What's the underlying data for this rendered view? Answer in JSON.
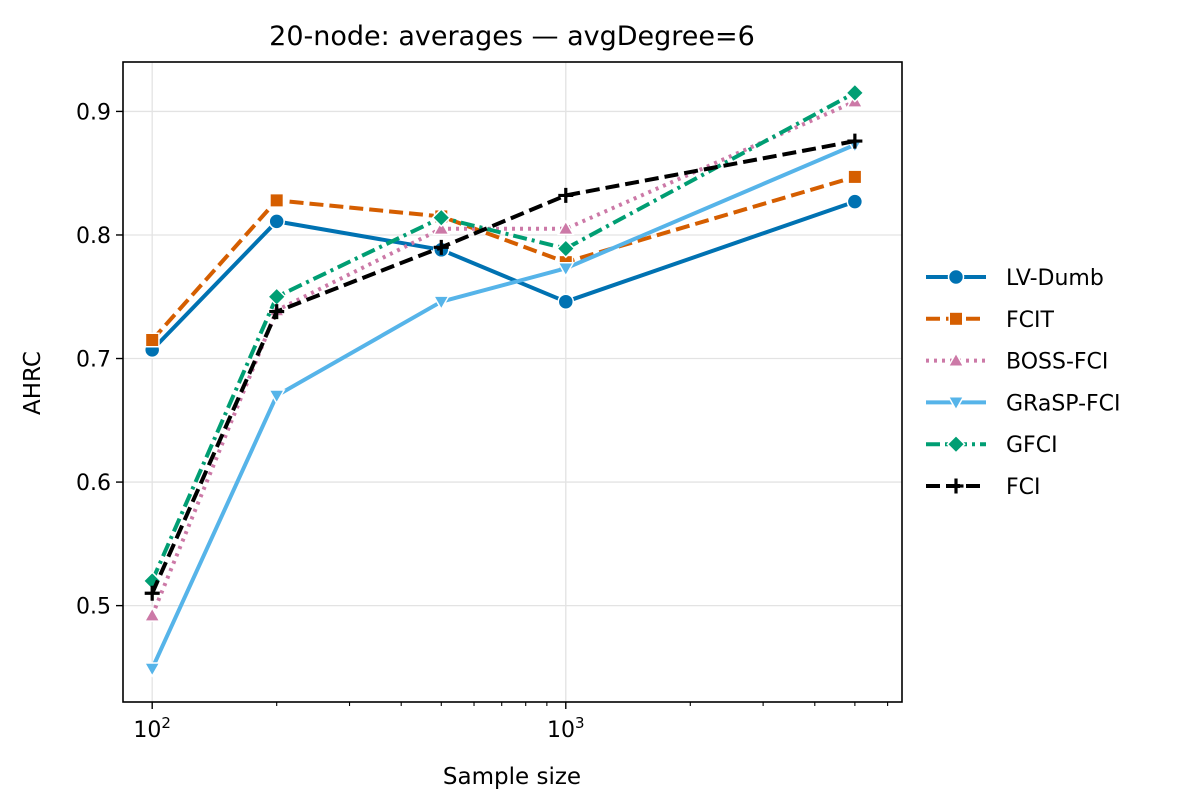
{
  "chart_data": {
    "type": "line",
    "title": "20-node: averages — avgDegree=6",
    "xlabel": "Sample size",
    "ylabel": "AHRC",
    "xscale": "log",
    "xlim": [
      85,
      6500
    ],
    "ylim": [
      0.422,
      0.94
    ],
    "xticks_major": [
      {
        "value": 100,
        "base": "10",
        "exp": "2"
      },
      {
        "value": 1000,
        "base": "10",
        "exp": "3"
      }
    ],
    "xticks_minor": [
      200,
      300,
      400,
      500,
      600,
      700,
      800,
      900,
      2000,
      3000,
      4000,
      5000,
      6000
    ],
    "yticks": [
      {
        "value": 0.5,
        "label": "0.5"
      },
      {
        "value": 0.6,
        "label": "0.6"
      },
      {
        "value": 0.7,
        "label": "0.7"
      },
      {
        "value": 0.8,
        "label": "0.8"
      },
      {
        "value": 0.9,
        "label": "0.9"
      }
    ],
    "grid": true,
    "legend_position": "right-outside",
    "x": [
      100,
      200,
      500,
      1000,
      5000
    ],
    "series": [
      {
        "name": "LV-Dumb",
        "color": "#0072b2",
        "marker": "circle",
        "dash": "solid",
        "values": [
          0.707,
          0.811,
          0.788,
          0.746,
          0.827
        ]
      },
      {
        "name": "FCIT",
        "color": "#d55e00",
        "marker": "square",
        "dash": "dashed",
        "values": [
          0.715,
          0.828,
          0.815,
          0.778,
          0.847
        ]
      },
      {
        "name": "BOSS-FCI",
        "color": "#cc79a7",
        "marker": "triangle-up",
        "dash": "dotted",
        "values": [
          0.492,
          0.739,
          0.805,
          0.805,
          0.908
        ]
      },
      {
        "name": "GRaSP-FCI",
        "color": "#56b4e9",
        "marker": "triangle-down",
        "dash": "solid",
        "values": [
          0.449,
          0.67,
          0.746,
          0.773,
          0.873
        ]
      },
      {
        "name": "GFCI",
        "color": "#009e73",
        "marker": "diamond",
        "dash": "dashdot",
        "values": [
          0.52,
          0.75,
          0.814,
          0.789,
          0.915
        ]
      },
      {
        "name": "FCI",
        "color": "#000000",
        "marker": "plus",
        "dash": "dashed",
        "values": [
          0.51,
          0.738,
          0.79,
          0.832,
          0.876
        ]
      }
    ]
  }
}
